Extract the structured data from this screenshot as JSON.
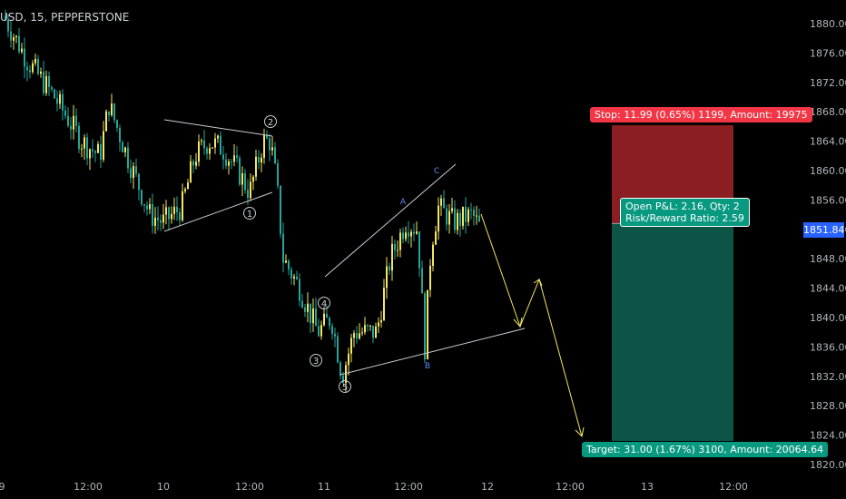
{
  "header": {
    "symbol": "USD, 15, PEPPERSTONE"
  },
  "chart_data": {
    "type": "candlestick",
    "y_axis_ticks": [
      "1880.00",
      "1876.00",
      "1872.00",
      "1868.00",
      "1864.00",
      "1860.00",
      "1856.00",
      "1852.00",
      "1848.00",
      "1844.00",
      "1840.00",
      "1836.00",
      "1832.00",
      "1828.00",
      "1824.00",
      "1820.00"
    ],
    "x_axis_ticks": [
      "9",
      "12:00",
      "10",
      "12:00",
      "11",
      "12:00",
      "12",
      "12:00",
      "13",
      "12:00"
    ],
    "last_price": "1851.84",
    "wave_labels": [
      "1",
      "2",
      "3",
      "4",
      "5",
      "A",
      "B",
      "C"
    ],
    "position": {
      "stop_text": "Stop: 11.99 (0.65%) 1199, Amount: 19975",
      "open_text": "Open P&L: 2.16, Qty: 2",
      "rr_text": "Risk/Reward Ratio: 2.59",
      "target_text": "Target: 31.00 (1.67%) 3100, Amount: 20064.64",
      "entry": 1852.8,
      "stop": 1864.8,
      "target": 1821.8
    },
    "colors": {
      "up": "#f5e663",
      "down": "#26a69a",
      "stop_zone": "#8b1e22",
      "target_zone": "#0b5446",
      "projection": "#f5e663",
      "trendline": "#c8cbd3"
    }
  }
}
